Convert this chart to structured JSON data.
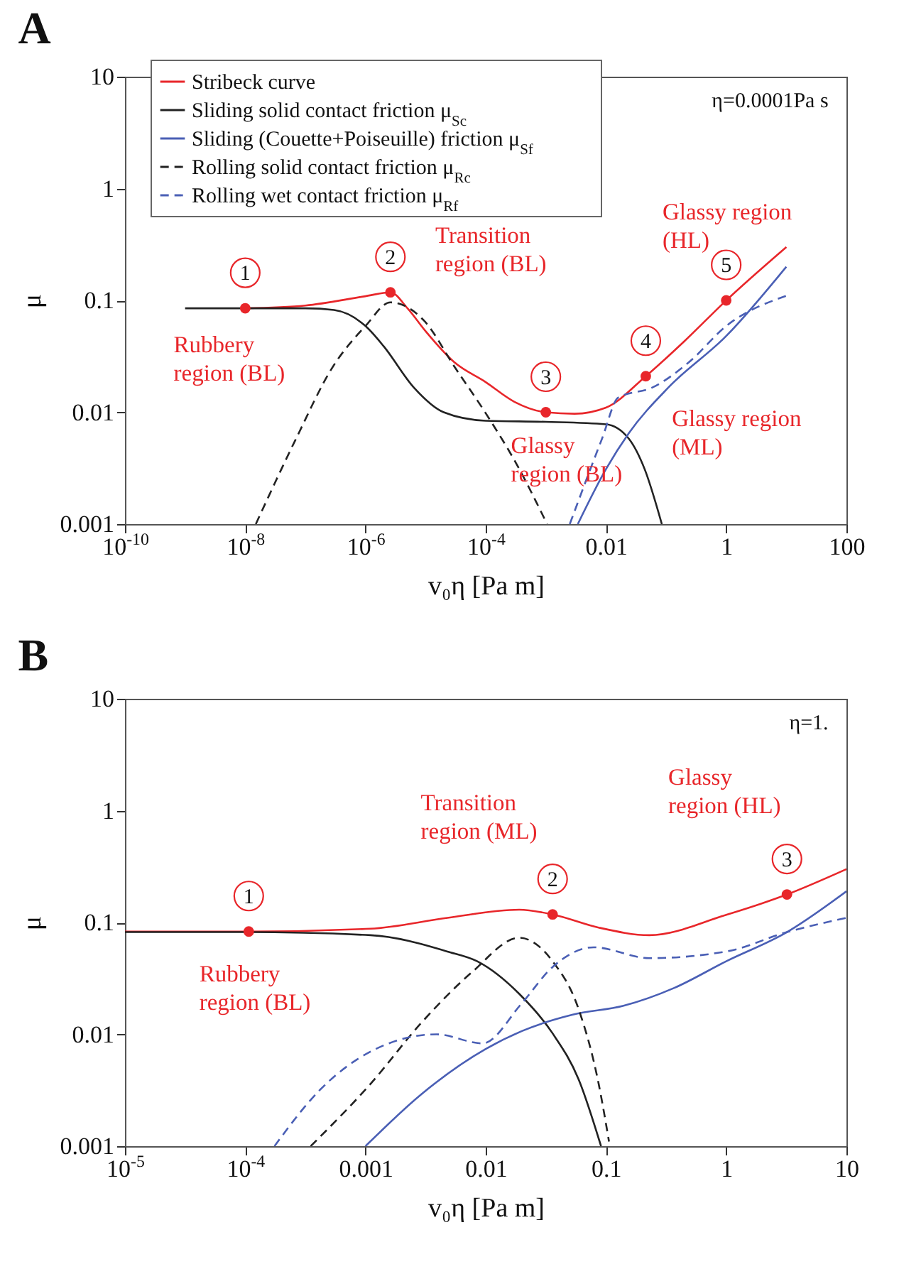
{
  "chart_data": [
    {
      "type": "line",
      "title": "A",
      "xlabel": "v₀η [Pa m]",
      "ylabel": "μ",
      "log": "xy",
      "legend": "top left",
      "grid": false,
      "xlim": [
        1e-10,
        100
      ],
      "ylim": [
        0.001,
        10
      ],
      "xticks": [
        {
          "value": 1e-10,
          "label": "10$^{-10}$"
        },
        {
          "value": 1e-08,
          "label": "10$^{-8}$"
        },
        {
          "value": 1e-06,
          "label": "10$^{-6}$"
        },
        {
          "value": 0.0001,
          "label": "10$^{-4}$"
        },
        0.01,
        1,
        100
      ],
      "yticks": [
        0.001,
        0.01,
        0.1,
        1,
        10
      ],
      "series": [
        {
          "name": "Stribeck curve",
          "color": "#e8262a",
          "line_style": "solid",
          "x": [
            1e-08,
            1e-07,
            1e-06,
            2.6e-06,
            5e-06,
            1e-05,
            3e-05,
            0.0001,
            0.0003,
            0.001,
            0.003,
            0.01,
            0.046,
            0.2,
            1,
            10
          ],
          "values": [
            0.085,
            0.09,
            0.109,
            0.118,
            0.085,
            0.053,
            0.028,
            0.0186,
            0.0124,
            0.01,
            0.0097,
            0.011,
            0.021,
            0.043,
            0.1,
            0.3
          ]
        },
        {
          "name": "Sliding solid contact friction μ$_{Sc}$",
          "color": "#222222",
          "line_style": "solid",
          "x": [
            1e-09,
            1e-08,
            1e-07,
            3e-07,
            1e-06,
            2e-06,
            6.4e-06,
            2e-05,
            0.0001,
            0.001,
            0.01,
            0.024,
            0.044,
            0.085
          ],
          "values": [
            0.085,
            0.085,
            0.085,
            0.082,
            0.059,
            0.039,
            0.0166,
            0.01,
            0.0084,
            0.0082,
            0.0078,
            0.0058,
            0.0031,
            0.001
          ]
        },
        {
          "name": "Sliding (Couette+Poiseuille) friction μ$_{Sf}$",
          "color": "#4a5fb5",
          "line_style": "solid",
          "x": [
            0.0034,
            0.01,
            0.024,
            0.11,
            1,
            10
          ],
          "values": [
            0.001,
            0.0031,
            0.0065,
            0.0167,
            0.048,
            0.2
          ]
        },
        {
          "name": "Rolling solid contact friction μ$_{Rc}$",
          "color": "#222222",
          "line_style": "dashed",
          "x": [
            1.5e-08,
            7e-08,
            2.8e-07,
            1e-06,
            2.6e-06,
            9.4e-06,
            3.1e-05,
            0.0001,
            0.00032,
            0.00105
          ],
          "values": [
            0.001,
            0.0058,
            0.025,
            0.059,
            0.096,
            0.066,
            0.025,
            0.0098,
            0.0035,
            0.001
          ]
        },
        {
          "name": "Rolling wet contact friction μ$_{Rf}$",
          "color": "#4a5fb5",
          "line_style": "dashed",
          "x": [
            0.0025,
            0.0086,
            0.016,
            0.06,
            0.24,
            1,
            10
          ],
          "values": [
            0.001,
            0.0058,
            0.0135,
            0.0167,
            0.028,
            0.059,
            0.11
          ]
        },
        {
          "type": "scatter",
          "marker": "circle",
          "color": "#e8262a",
          "x": [
            1e-08,
            2.6e-06,
            0.001,
            0.046,
            1
          ],
          "values": [
            0.085,
            0.118,
            0.01,
            0.021,
            0.1
          ]
        }
      ],
      "annotations": [
        "η=0.0001Pa s",
        {
          "text": "1",
          "x": 1e-08,
          "y": 0.085
        },
        {
          "text": "2",
          "x": 2.6e-06,
          "y": 0.118
        },
        {
          "text": "3",
          "x": 0.001,
          "y": 0.01
        },
        {
          "text": "4",
          "x": 0.046,
          "y": 0.021
        },
        {
          "text": "5",
          "x": 1,
          "y": 0.1
        },
        "Rubbery\nregion (BL)",
        "Transition\nregion (BL)",
        "Glassy\nregion (BL)",
        "Glassy region\n(ML)",
        "Glassy region\n(HL)"
      ]
    },
    {
      "type": "line",
      "title": "B",
      "xlabel": "v₀η [Pa m]",
      "ylabel": "μ",
      "log": "xy",
      "grid": false,
      "xlim": [
        1e-05,
        10
      ],
      "ylim": [
        0.001,
        10
      ],
      "xticks": [
        {
          "value": 1e-05,
          "label": "10$^{-5}$"
        },
        {
          "value": 0.0001,
          "label": "10$^{-4}$"
        },
        0.001,
        0.01,
        0.1,
        1,
        10
      ],
      "yticks": [
        0.001,
        0.01,
        0.1,
        1,
        10
      ],
      "series": [
        {
          "color": "#e8262a",
          "line_style": "solid",
          "x": [
            1e-05,
            0.000107,
            0.0011,
            0.0048,
            0.019,
            0.036,
            0.087,
            0.23,
            1,
            3.2,
            10
          ],
          "values": [
            0.083,
            0.083,
            0.088,
            0.11,
            0.13,
            0.118,
            0.09,
            0.077,
            0.117,
            0.178,
            0.3
          ]
        },
        {
          "color": "#222222",
          "line_style": "solid",
          "x": [
            1e-05,
            0.0001,
            0.0011,
            0.0048,
            0.0085,
            0.019,
            0.036,
            0.059,
            0.091
          ],
          "values": [
            0.082,
            0.082,
            0.077,
            0.055,
            0.045,
            0.023,
            0.0102,
            0.004,
            0.001
          ]
        },
        {
          "color": "#4a5fb5",
          "line_style": "solid",
          "x": [
            0.001,
            0.0029,
            0.01,
            0.02,
            0.053,
            0.14,
            0.37,
            1,
            3.2,
            10
          ],
          "values": [
            0.001,
            0.0029,
            0.0074,
            0.0107,
            0.015,
            0.018,
            0.026,
            0.045,
            0.082,
            0.19
          ]
        },
        {
          "color": "#222222",
          "line_style": "dashed",
          "x": [
            0.00035,
            0.0011,
            0.0029,
            0.0077,
            0.019,
            0.036,
            0.059,
            0.087,
            0.106
          ],
          "values": [
            0.001,
            0.0036,
            0.0126,
            0.036,
            0.073,
            0.045,
            0.017,
            0.0036,
            0.0011
          ]
        },
        {
          "color": "#4a5fb5",
          "line_style": "dashed",
          "x": [
            0.000175,
            0.00042,
            0.0011,
            0.0039,
            0.0094,
            0.02,
            0.036,
            0.079,
            0.23,
            1,
            3.2,
            10
          ],
          "values": [
            0.001,
            0.0032,
            0.007,
            0.01,
            0.0083,
            0.019,
            0.04,
            0.06,
            0.048,
            0.055,
            0.082,
            0.11
          ]
        },
        {
          "type": "scatter",
          "marker": "circle",
          "color": "#e8262a",
          "x": [
            0.000107,
            0.036,
            3.2
          ],
          "values": [
            0.083,
            0.118,
            0.178
          ]
        }
      ],
      "annotations": [
        "η=1.",
        {
          "text": "1",
          "x": 0.000107,
          "y": 0.083
        },
        {
          "text": "2",
          "x": 0.036,
          "y": 0.118
        },
        {
          "text": "3",
          "x": 3.2,
          "y": 0.178
        },
        "Rubbery\nregion (BL)",
        "Transition\nregion (ML)",
        "Glassy\nregion (HL)"
      ]
    }
  ]
}
